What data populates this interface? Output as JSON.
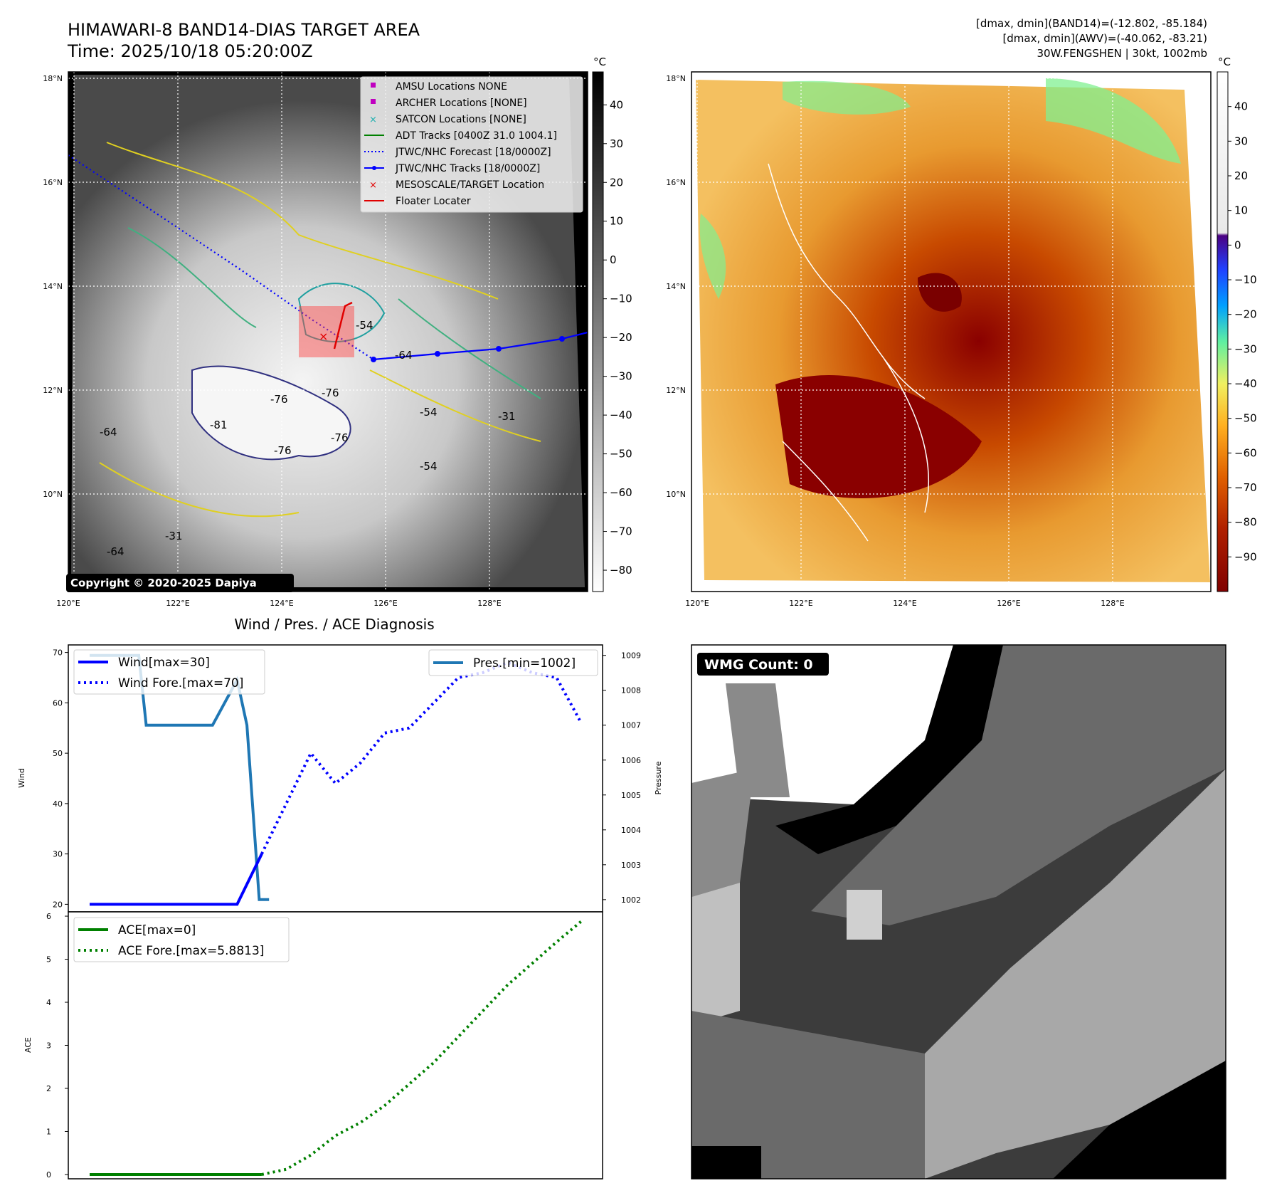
{
  "figure_title": {
    "line1": "HIMAWARI-8 BAND14-DIAS TARGET AREA",
    "line2": "Time: 2025/10/18 05:20:00Z"
  },
  "top_right_info": {
    "line1": "[dmax, dmin](BAND14)=(-12.802, -85.184)",
    "line2": "[dmax, dmin](AWV)=(-40.062, -83.21)",
    "line3": "30W.FENGSHEN | 30kt, 1002mb"
  },
  "copyright": "Copyright © 2020-2025 Dapiya",
  "map": {
    "lon_labels": [
      "120°E",
      "122°E",
      "124°E",
      "126°E",
      "128°E"
    ],
    "lat_labels": [
      "18°N",
      "16°N",
      "14°N",
      "12°N",
      "10°N"
    ],
    "contour_labels": [
      "-54",
      "-64",
      "-76",
      "-76",
      "-81",
      "-76",
      "-76",
      "-54",
      "-31",
      "-64",
      "-31",
      "-54",
      "-64"
    ],
    "legend": [
      {
        "label": "AMSU Locations NONE",
        "color": "#c000c0",
        "marker": "square"
      },
      {
        "label": "ARCHER Locations [NONE]",
        "color": "#c000c0",
        "marker": "square"
      },
      {
        "label": "SATCON Locations [NONE]",
        "color": "#20b0b0",
        "marker": "x"
      },
      {
        "label": "ADT Tracks [0400Z 31.0 1004.1]",
        "color": "#008000",
        "marker": "line"
      },
      {
        "label": "JTWC/NHC Forecast [18/0000Z]",
        "color": "#0000ff",
        "marker": "dotted"
      },
      {
        "label": "JTWC/NHC Tracks [18/0000Z]",
        "color": "#0000ff",
        "marker": "line-dot"
      },
      {
        "label": "MESOSCALE/TARGET Location",
        "color": "#e00000",
        "marker": "x"
      },
      {
        "label": "Floater Locater",
        "color": "#e00000",
        "marker": "line"
      }
    ],
    "colorbar_unit": "°C",
    "colorbar_ticks": [
      "40",
      "30",
      "20",
      "10",
      "0",
      "−10",
      "−20",
      "−30",
      "−40",
      "−50",
      "−60",
      "−70",
      "−80"
    ]
  },
  "awv": {
    "colorbar_unit": "°C",
    "colorbar_ticks": [
      "40",
      "30",
      "20",
      "10",
      "0",
      "−10",
      "−20",
      "−30",
      "−40",
      "−50",
      "−60",
      "−70",
      "−80",
      "−90"
    ]
  },
  "wmg": {
    "badge": "WMG Count: 0"
  },
  "chart_data": {
    "type": "line",
    "title": "Wind / Pres. / ACE Diagnosis",
    "panels": [
      {
        "ylabel_left": "Wind",
        "ylabel_right": "Pressure",
        "left_ticks": [
          20,
          30,
          40,
          50,
          60,
          70
        ],
        "right_ticks": [
          1002,
          1003,
          1004,
          1005,
          1006,
          1007,
          1008,
          1009
        ],
        "ylim_left": [
          18.5,
          71.5
        ],
        "ylim_right": [
          1001.65,
          1009.3
        ],
        "series": [
          {
            "name": "Wind[max=30]",
            "axis": "left",
            "style": "solid",
            "color": "#0000ff",
            "x": [
              0,
              1,
              2,
              3,
              4,
              5,
              6,
              7
            ],
            "y": [
              20,
              20,
              20,
              20,
              20,
              20,
              20,
              30
            ]
          },
          {
            "name": "Wind Fore.[max=70]",
            "axis": "left",
            "style": "dotted",
            "color": "#0000ff",
            "x": [
              7,
              8,
              9,
              10,
              11,
              12,
              13,
              14,
              15,
              16,
              17,
              18,
              19,
              20
            ],
            "y": [
              30,
              40,
              50,
              44,
              48,
              54,
              55,
              60,
              65,
              66,
              68,
              66,
              65,
              56
            ]
          },
          {
            "name": "Pres.[min=1002]",
            "axis": "right",
            "style": "solid",
            "color": "#1f77b4",
            "x": [
              0,
              1,
              2,
              2.3,
              3,
              4,
              5,
              6,
              6.4,
              6.9,
              7.3
            ],
            "y": [
              1009,
              1009,
              1009,
              1007,
              1007,
              1007,
              1007,
              1008.3,
              1007,
              1002,
              1002
            ]
          }
        ]
      },
      {
        "ylabel_left": "ACE",
        "left_ticks": [
          0,
          1,
          2,
          3,
          4,
          5,
          6
        ],
        "ylim_left": [
          -0.1,
          6.1
        ],
        "series": [
          {
            "name": "ACE[max=0]",
            "style": "solid",
            "color": "#008000",
            "x": [
              0,
              1,
              2,
              3,
              4,
              5,
              6,
              7
            ],
            "y": [
              0,
              0,
              0,
              0,
              0,
              0,
              0,
              0
            ]
          },
          {
            "name": "ACE Fore.[max=5.8813]",
            "style": "dotted",
            "color": "#008000",
            "x": [
              7,
              8,
              9,
              10,
              11,
              12,
              13,
              14,
              15,
              16,
              17,
              18,
              19,
              20
            ],
            "y": [
              0,
              0.12,
              0.45,
              0.9,
              1.2,
              1.6,
              2.1,
              2.6,
              3.2,
              3.8,
              4.4,
              4.9,
              5.4,
              5.88
            ]
          }
        ]
      }
    ]
  }
}
